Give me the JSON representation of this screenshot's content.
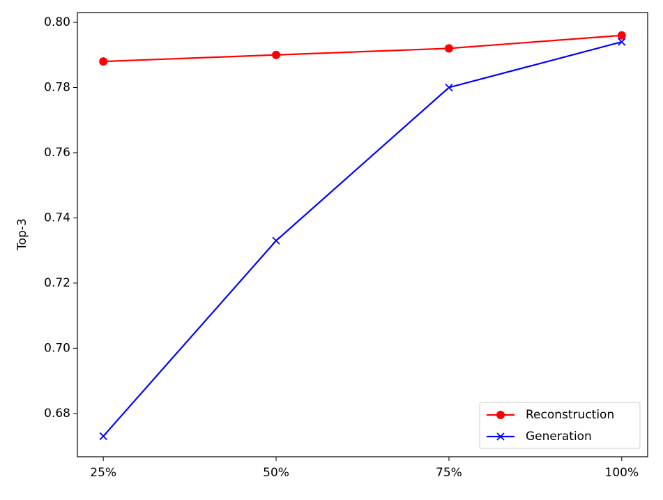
{
  "chart_data": {
    "type": "line",
    "y_label": "Top-3",
    "categories": [
      "25%",
      "50%",
      "75%",
      "100%"
    ],
    "series": [
      {
        "name": "Reconstruction",
        "color": "#ff0000",
        "marker": "circle",
        "values": [
          0.788,
          0.79,
          0.792,
          0.796
        ]
      },
      {
        "name": "Generation",
        "color": "#0000ff",
        "marker": "x",
        "values": [
          0.673,
          0.733,
          0.78,
          0.794
        ]
      }
    ],
    "ylim": [
      0.6667,
      0.803
    ],
    "yticks": [
      0.68,
      {
        "value": 0.7,
        "label": "0.70"
      },
      0.72,
      0.74,
      0.76,
      0.78,
      {
        "value": 0.8,
        "label": "0.80"
      }
    ],
    "legend": "lower right",
    "grid": false
  }
}
